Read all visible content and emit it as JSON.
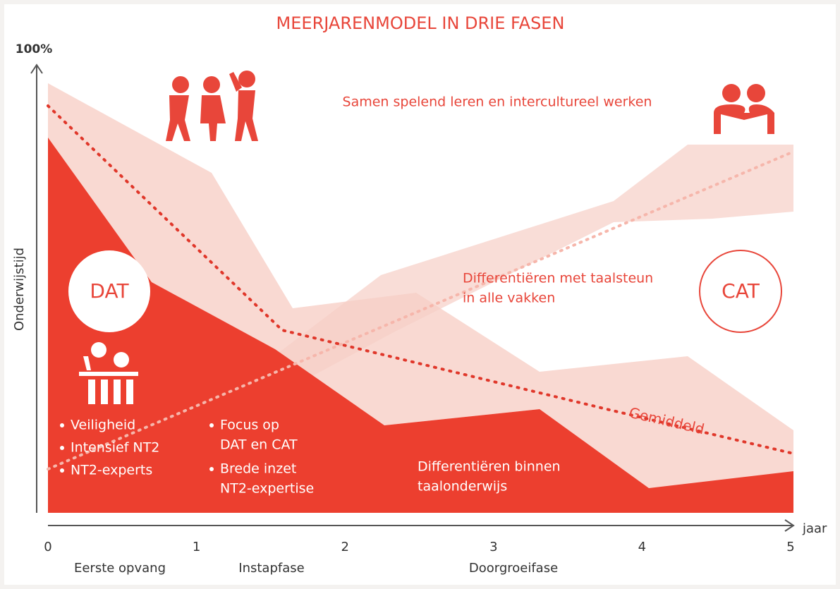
{
  "title": "MEERJARENMODEL IN DRIE FASEN",
  "y_axis": {
    "top": "100%",
    "label": "Onderwijstijd"
  },
  "x_axis": {
    "label": "jaar",
    "ticks": [
      "0",
      "1",
      "2",
      "3",
      "4",
      "5"
    ]
  },
  "phases": [
    "Eerste opvang",
    "Instapfase",
    "Doorgroeifase"
  ],
  "circles": {
    "left": "DAT",
    "right": "CAT"
  },
  "annotations": {
    "top": "Samen spelend leren en intercultureel werken",
    "middle": [
      "Differentiëren met taalsteun",
      "in alle vakken"
    ],
    "bottom": [
      "Differentiëren binnen",
      "taalonderwijs"
    ],
    "average": "Gemiddeld"
  },
  "bullets_left": [
    "Veiligheid",
    "Intensief NT2",
    "NT2-experts"
  ],
  "bullets_mid": [
    [
      "Focus op",
      "DAT en CAT"
    ],
    [
      "Brede inzet",
      "NT2-expertise"
    ]
  ]
}
